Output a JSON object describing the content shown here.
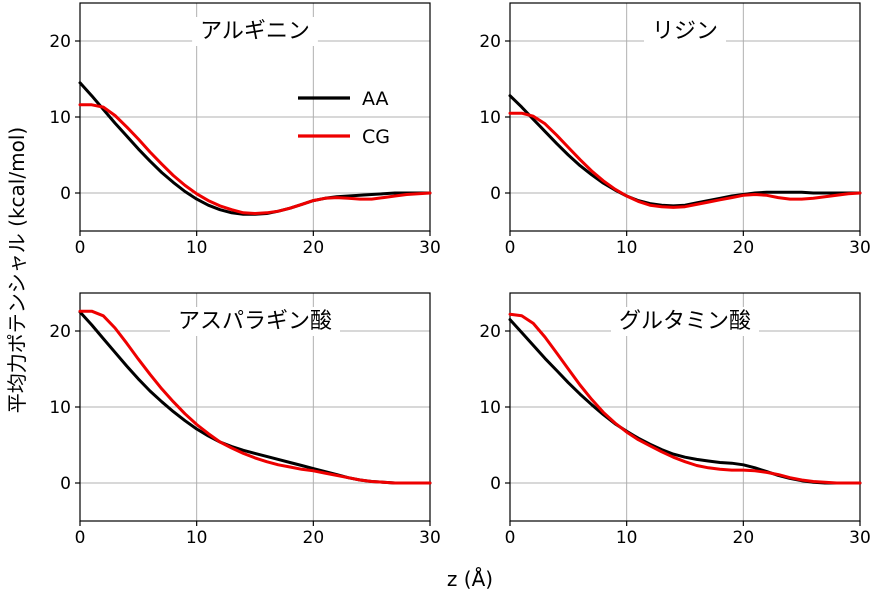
{
  "figure": {
    "xlabel": "z (Å)",
    "ylabel": "平均力ポテンシャル (kcal/mol)"
  },
  "chart_data": [
    {
      "type": "line",
      "title": "アルギニン",
      "xlim": [
        0,
        30
      ],
      "ylim": [
        -5,
        25
      ],
      "xticks": [
        0,
        10,
        20,
        30
      ],
      "yticks": [
        0,
        10,
        20
      ],
      "grid": true,
      "legend": {
        "placement": "top-right",
        "entries": [
          "AA",
          "CG"
        ]
      },
      "series": [
        {
          "name": "AA",
          "color": "#000000",
          "x": [
            0,
            1,
            2,
            3,
            4,
            5,
            6,
            7,
            8,
            9,
            10,
            11,
            12,
            13,
            14,
            15,
            16,
            17,
            18,
            19,
            20,
            21,
            22,
            23,
            24,
            25,
            26,
            27,
            28,
            29,
            30
          ],
          "y": [
            14.5,
            12.8,
            11.0,
            9.2,
            7.5,
            5.8,
            4.2,
            2.7,
            1.4,
            0.2,
            -0.8,
            -1.6,
            -2.2,
            -2.6,
            -2.8,
            -2.8,
            -2.7,
            -2.4,
            -2.0,
            -1.5,
            -1.0,
            -0.7,
            -0.5,
            -0.4,
            -0.3,
            -0.2,
            -0.1,
            0.0,
            0.0,
            0.0,
            0.0
          ]
        },
        {
          "name": "CG",
          "color": "#ee0000",
          "x": [
            0,
            1,
            2,
            3,
            4,
            5,
            6,
            7,
            8,
            9,
            10,
            11,
            12,
            13,
            14,
            15,
            16,
            17,
            18,
            19,
            20,
            21,
            22,
            23,
            24,
            25,
            26,
            27,
            28,
            29,
            30
          ],
          "y": [
            11.6,
            11.6,
            11.3,
            10.2,
            8.7,
            7.1,
            5.4,
            3.8,
            2.3,
            1.0,
            -0.1,
            -1.0,
            -1.7,
            -2.2,
            -2.6,
            -2.7,
            -2.6,
            -2.4,
            -2.0,
            -1.5,
            -1.0,
            -0.7,
            -0.6,
            -0.7,
            -0.8,
            -0.8,
            -0.6,
            -0.4,
            -0.2,
            -0.1,
            0.0
          ]
        }
      ]
    },
    {
      "type": "line",
      "title": "リジン",
      "xlim": [
        0,
        30
      ],
      "ylim": [
        -5,
        25
      ],
      "xticks": [
        0,
        10,
        20,
        30
      ],
      "yticks": [
        0,
        10,
        20
      ],
      "grid": true,
      "series": [
        {
          "name": "AA",
          "color": "#000000",
          "x": [
            0,
            1,
            2,
            3,
            4,
            5,
            6,
            7,
            8,
            9,
            10,
            11,
            12,
            13,
            14,
            15,
            16,
            17,
            18,
            19,
            20,
            21,
            22,
            23,
            24,
            25,
            26,
            27,
            28,
            29,
            30
          ],
          "y": [
            12.8,
            11.3,
            9.7,
            8.1,
            6.5,
            5.0,
            3.6,
            2.4,
            1.3,
            0.4,
            -0.4,
            -1.0,
            -1.4,
            -1.6,
            -1.7,
            -1.6,
            -1.3,
            -1.0,
            -0.7,
            -0.4,
            -0.2,
            0.0,
            0.1,
            0.1,
            0.1,
            0.1,
            0.0,
            0.0,
            0.0,
            0.0,
            0.0
          ]
        },
        {
          "name": "CG",
          "color": "#ee0000",
          "x": [
            0,
            1,
            2,
            3,
            4,
            5,
            6,
            7,
            8,
            9,
            10,
            11,
            12,
            13,
            14,
            15,
            16,
            17,
            18,
            19,
            20,
            21,
            22,
            23,
            24,
            25,
            26,
            27,
            28,
            29,
            30
          ],
          "y": [
            10.5,
            10.5,
            10.1,
            9.1,
            7.6,
            6.0,
            4.4,
            2.9,
            1.6,
            0.5,
            -0.4,
            -1.1,
            -1.6,
            -1.8,
            -1.9,
            -1.8,
            -1.5,
            -1.2,
            -0.9,
            -0.6,
            -0.3,
            -0.2,
            -0.3,
            -0.6,
            -0.8,
            -0.8,
            -0.7,
            -0.5,
            -0.3,
            -0.1,
            0.0
          ]
        }
      ]
    },
    {
      "type": "line",
      "title": "アスパラギン酸",
      "xlim": [
        0,
        30
      ],
      "ylim": [
        -5,
        25
      ],
      "xticks": [
        0,
        10,
        20,
        30
      ],
      "yticks": [
        0,
        10,
        20
      ],
      "grid": true,
      "series": [
        {
          "name": "AA",
          "color": "#000000",
          "x": [
            0,
            1,
            2,
            3,
            4,
            5,
            6,
            7,
            8,
            9,
            10,
            11,
            12,
            13,
            14,
            15,
            16,
            17,
            18,
            19,
            20,
            21,
            22,
            23,
            24,
            25,
            26,
            27,
            28,
            29,
            30
          ],
          "y": [
            22.5,
            20.8,
            19.0,
            17.2,
            15.4,
            13.7,
            12.1,
            10.7,
            9.4,
            8.2,
            7.1,
            6.2,
            5.4,
            4.8,
            4.3,
            3.9,
            3.5,
            3.1,
            2.7,
            2.3,
            1.9,
            1.5,
            1.1,
            0.7,
            0.4,
            0.2,
            0.1,
            0.0,
            0.0,
            0.0,
            0.0
          ]
        },
        {
          "name": "CG",
          "color": "#ee0000",
          "x": [
            0,
            1,
            2,
            3,
            4,
            5,
            6,
            7,
            8,
            9,
            10,
            11,
            12,
            13,
            14,
            15,
            16,
            17,
            18,
            19,
            20,
            21,
            22,
            23,
            24,
            25,
            26,
            27,
            28,
            29,
            30
          ],
          "y": [
            22.6,
            22.6,
            22.0,
            20.4,
            18.4,
            16.3,
            14.3,
            12.4,
            10.7,
            9.1,
            7.7,
            6.5,
            5.4,
            4.6,
            3.9,
            3.3,
            2.8,
            2.4,
            2.1,
            1.8,
            1.6,
            1.3,
            1.0,
            0.7,
            0.4,
            0.2,
            0.1,
            0.0,
            0.0,
            0.0,
            0.0
          ]
        }
      ]
    },
    {
      "type": "line",
      "title": "グルタミン酸",
      "xlim": [
        0,
        30
      ],
      "ylim": [
        -5,
        25
      ],
      "xticks": [
        0,
        10,
        20,
        30
      ],
      "yticks": [
        0,
        10,
        20
      ],
      "grid": true,
      "series": [
        {
          "name": "AA",
          "color": "#000000",
          "x": [
            0,
            1,
            2,
            3,
            4,
            5,
            6,
            7,
            8,
            9,
            10,
            11,
            12,
            13,
            14,
            15,
            16,
            17,
            18,
            19,
            20,
            21,
            22,
            23,
            24,
            25,
            26,
            27,
            28,
            29,
            30
          ],
          "y": [
            21.5,
            19.8,
            18.1,
            16.4,
            14.8,
            13.2,
            11.7,
            10.3,
            9.0,
            7.8,
            6.8,
            5.9,
            5.1,
            4.4,
            3.8,
            3.4,
            3.1,
            2.9,
            2.7,
            2.6,
            2.4,
            2.0,
            1.5,
            1.0,
            0.6,
            0.3,
            0.1,
            0.0,
            0.0,
            0.0,
            0.0
          ]
        },
        {
          "name": "CG",
          "color": "#ee0000",
          "x": [
            0,
            1,
            2,
            3,
            4,
            5,
            6,
            7,
            8,
            9,
            10,
            11,
            12,
            13,
            14,
            15,
            16,
            17,
            18,
            19,
            20,
            21,
            22,
            23,
            24,
            25,
            26,
            27,
            28,
            29,
            30
          ],
          "y": [
            22.2,
            22.0,
            21.0,
            19.2,
            17.1,
            15.0,
            12.9,
            11.0,
            9.3,
            7.9,
            6.7,
            5.7,
            4.9,
            4.1,
            3.4,
            2.8,
            2.3,
            2.0,
            1.8,
            1.7,
            1.7,
            1.6,
            1.4,
            1.1,
            0.7,
            0.4,
            0.2,
            0.1,
            0.0,
            0.0,
            0.0
          ]
        }
      ]
    }
  ]
}
